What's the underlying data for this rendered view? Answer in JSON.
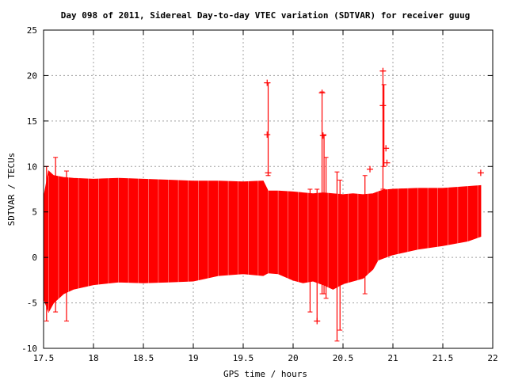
{
  "chart_data": {
    "type": "scatter",
    "title": "Day 098 of 2011, Sidereal Day-to-day VTEC variation (SDTVAR) for receiver guug",
    "xlabel": "GPS time / hours",
    "ylabel": "SDTVAR / TECUs",
    "xlim": [
      17.5,
      22
    ],
    "ylim": [
      -10,
      25
    ],
    "x_ticks": [
      "17.5",
      "18",
      "18.5",
      "19",
      "19.5",
      "20",
      "20.5",
      "21",
      "21.5",
      "22"
    ],
    "y_ticks": [
      "-10",
      "-5",
      "0",
      "5",
      "10",
      "15",
      "20",
      "25"
    ],
    "grid": true,
    "series_color": "#ff0000",
    "band_profile": {
      "x": [
        17.5,
        17.55,
        17.6,
        17.7,
        17.8,
        18.0,
        18.25,
        18.5,
        18.75,
        19.0,
        19.25,
        19.5,
        19.7,
        19.75,
        19.85,
        20.0,
        20.1,
        20.2,
        20.3,
        20.4,
        20.5,
        20.6,
        20.7,
        20.8,
        20.85,
        20.9,
        21.0,
        21.25,
        21.5,
        21.75,
        21.88
      ],
      "upper": [
        6.5,
        9.5,
        9.0,
        8.8,
        8.7,
        8.6,
        8.7,
        8.6,
        8.5,
        8.4,
        8.4,
        8.3,
        8.4,
        7.3,
        7.3,
        7.2,
        7.1,
        7.0,
        7.1,
        7.0,
        6.9,
        7.0,
        6.9,
        7.0,
        7.2,
        7.4,
        7.5,
        7.6,
        7.6,
        7.8,
        7.9
      ],
      "lower": [
        -4.5,
        -6.0,
        -5.0,
        -4.0,
        -3.5,
        -3.0,
        -2.7,
        -2.8,
        -2.7,
        -2.6,
        -2.0,
        -1.8,
        -2.0,
        -1.7,
        -1.8,
        -2.5,
        -2.8,
        -2.6,
        -3.0,
        -3.5,
        -2.9,
        -2.6,
        -2.3,
        -1.3,
        -0.3,
        -0.1,
        0.3,
        0.9,
        1.3,
        1.8,
        2.3
      ]
    },
    "spikes": [
      {
        "x": 17.53,
        "low": -7.0,
        "high": 10.0
      },
      {
        "x": 17.62,
        "low": -6.0,
        "high": 11.0
      },
      {
        "x": 17.73,
        "low": -7.0,
        "high": 9.5
      },
      {
        "x": 19.75,
        "low": 9.0,
        "high": 19.2
      },
      {
        "x": 20.17,
        "low": -6.0,
        "high": 7.5
      },
      {
        "x": 20.24,
        "low": -7.0,
        "high": 7.5
      },
      {
        "x": 20.29,
        "low": -4.0,
        "high": 18.2
      },
      {
        "x": 20.31,
        "low": -4.0,
        "high": 13.5
      },
      {
        "x": 20.33,
        "low": -4.5,
        "high": 11.0
      },
      {
        "x": 20.44,
        "low": -9.2,
        "high": 9.4
      },
      {
        "x": 20.47,
        "low": -8.0,
        "high": 8.5
      },
      {
        "x": 20.72,
        "low": -4.0,
        "high": 9.0
      },
      {
        "x": 20.9,
        "low": 7.5,
        "high": 20.5
      },
      {
        "x": 20.91,
        "low": 10.0,
        "high": 19.0
      }
    ],
    "outliers": [
      {
        "x": 19.74,
        "y": 19.2
      },
      {
        "x": 19.74,
        "y": 13.5
      },
      {
        "x": 19.75,
        "y": 9.3
      },
      {
        "x": 20.24,
        "y": -7.0
      },
      {
        "x": 20.29,
        "y": 18.1
      },
      {
        "x": 20.3,
        "y": 13.4
      },
      {
        "x": 20.77,
        "y": 9.7
      },
      {
        "x": 20.9,
        "y": 20.5
      },
      {
        "x": 20.9,
        "y": 16.7
      },
      {
        "x": 20.93,
        "y": 12.0
      },
      {
        "x": 20.94,
        "y": 10.4
      },
      {
        "x": 21.88,
        "y": 9.3
      }
    ]
  }
}
